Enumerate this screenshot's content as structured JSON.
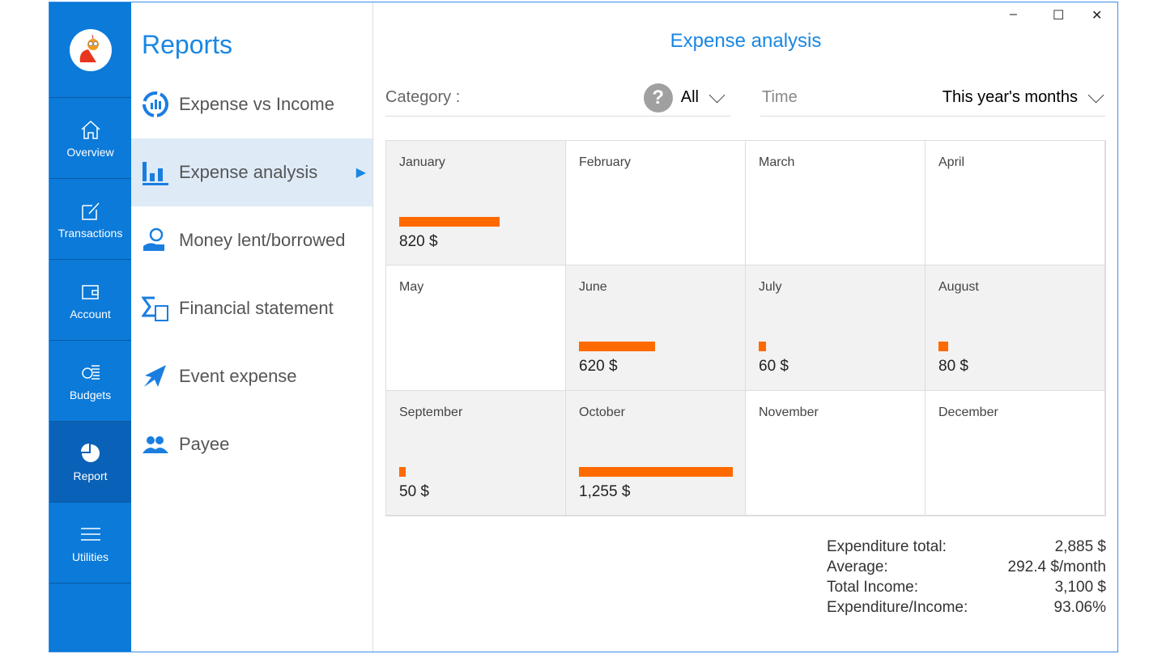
{
  "nav": {
    "items": [
      {
        "label": "Overview",
        "icon": "home-icon"
      },
      {
        "label": "Transactions",
        "icon": "edit-icon"
      },
      {
        "label": "Account",
        "icon": "wallet-icon"
      },
      {
        "label": "Budgets",
        "icon": "budget-icon"
      },
      {
        "label": "Report",
        "icon": "pie-chart-icon",
        "selected": true
      },
      {
        "label": "Utilities",
        "icon": "menu-icon"
      }
    ]
  },
  "reports": {
    "title": "Reports",
    "items": [
      {
        "label": "Expense vs Income"
      },
      {
        "label": "Expense analysis",
        "selected": true
      },
      {
        "label": "Money lent/borrowed"
      },
      {
        "label": "Financial statement"
      },
      {
        "label": "Event expense"
      },
      {
        "label": "Payee"
      }
    ]
  },
  "window": {
    "minimize": "–",
    "maximize": "☐",
    "close": "✕"
  },
  "main": {
    "title": "Expense analysis",
    "category_label": "Category :",
    "category_value": "All",
    "time_label": "Time",
    "time_value": "This year's months"
  },
  "months": [
    {
      "name": "January",
      "amount": 820,
      "label": "820 $"
    },
    {
      "name": "February",
      "amount": 0,
      "label": ""
    },
    {
      "name": "March",
      "amount": 0,
      "label": ""
    },
    {
      "name": "April",
      "amount": 0,
      "label": ""
    },
    {
      "name": "May",
      "amount": 0,
      "label": ""
    },
    {
      "name": "June",
      "amount": 620,
      "label": "620 $"
    },
    {
      "name": "July",
      "amount": 60,
      "label": "60 $"
    },
    {
      "name": "August",
      "amount": 80,
      "label": "80 $"
    },
    {
      "name": "September",
      "amount": 50,
      "label": "50 $"
    },
    {
      "name": "October",
      "amount": 1255,
      "label": "1,255 $"
    },
    {
      "name": "November",
      "amount": 0,
      "label": ""
    },
    {
      "name": "December",
      "amount": 0,
      "label": ""
    }
  ],
  "bar_color": "#ff6a00",
  "summary": [
    {
      "label": "Expenditure total:",
      "value": "2,885 $"
    },
    {
      "label": "Average:",
      "value": "292.4 $/month"
    },
    {
      "label": "Total Income:",
      "value": "3,100 $"
    },
    {
      "label": "Expenditure/Income:",
      "value": "93.06%"
    }
  ]
}
